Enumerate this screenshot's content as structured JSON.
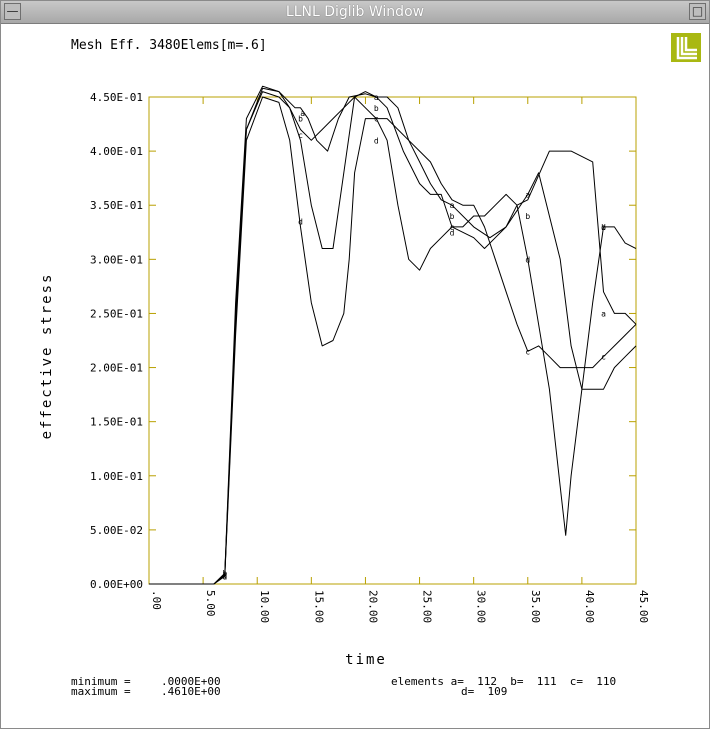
{
  "window": {
    "title": "LLNL Diglib Window",
    "menu_icon": "system-menu-icon",
    "maximize_icon": "maximize-icon"
  },
  "logo": {
    "name": "llnl-logo-icon",
    "color": "#a9b812"
  },
  "chart_data": {
    "type": "line",
    "title": "Mesh Eff. 3480Elems[m=.6]",
    "xlabel": "time",
    "ylabel": "effective stress",
    "xlim": [
      0,
      45
    ],
    "ylim": [
      0,
      0.45
    ],
    "x_ticks": [
      ".00",
      "5.00",
      "10.00",
      "15.00",
      "20.00",
      "25.00",
      "30.00",
      "35.00",
      "40.00",
      "45.00"
    ],
    "y_ticks": [
      "0.00E+00",
      "5.00E-02",
      "1.00E-01",
      "1.50E-01",
      "2.00E-01",
      "2.50E-01",
      "3.00E-01",
      "3.50E-01",
      "4.00E-01",
      "4.50E-01"
    ],
    "grid": false,
    "frame_color": "#b8a000",
    "series": [
      {
        "name": "a",
        "values": [
          [
            0,
            0
          ],
          [
            6,
            0
          ],
          [
            7,
            0.008
          ],
          [
            8,
            0.25
          ],
          [
            9,
            0.42
          ],
          [
            10.5,
            0.458
          ],
          [
            12,
            0.455
          ],
          [
            13.5,
            0.44
          ],
          [
            14,
            0.44
          ],
          [
            14.7,
            0.43
          ],
          [
            15.5,
            0.41
          ],
          [
            16.5,
            0.4
          ],
          [
            17.5,
            0.43
          ],
          [
            18.5,
            0.45
          ],
          [
            20,
            0.453
          ],
          [
            21,
            0.45
          ],
          [
            22,
            0.45
          ],
          [
            23,
            0.44
          ],
          [
            24,
            0.41
          ],
          [
            25,
            0.39
          ],
          [
            26,
            0.37
          ],
          [
            27,
            0.355
          ],
          [
            28,
            0.35
          ],
          [
            30,
            0.33
          ],
          [
            31.5,
            0.32
          ],
          [
            33,
            0.33
          ],
          [
            35,
            0.36
          ],
          [
            36,
            0.38
          ],
          [
            38,
            0.3
          ],
          [
            39,
            0.22
          ],
          [
            40,
            0.18
          ],
          [
            41,
            0.18
          ],
          [
            42,
            0.18
          ],
          [
            43,
            0.2
          ],
          [
            44,
            0.21
          ],
          [
            45,
            0.22
          ]
        ]
      },
      {
        "name": "b",
        "values": [
          [
            0,
            0
          ],
          [
            6,
            0
          ],
          [
            7,
            0.01
          ],
          [
            8,
            0.26
          ],
          [
            9,
            0.43
          ],
          [
            10.5,
            0.46
          ],
          [
            12,
            0.455
          ],
          [
            13,
            0.44
          ],
          [
            14,
            0.41
          ],
          [
            15,
            0.35
          ],
          [
            16,
            0.31
          ],
          [
            17,
            0.31
          ],
          [
            18,
            0.38
          ],
          [
            19,
            0.45
          ],
          [
            20,
            0.455
          ],
          [
            21,
            0.45
          ],
          [
            22,
            0.44
          ],
          [
            23.5,
            0.4
          ],
          [
            25,
            0.37
          ],
          [
            26,
            0.36
          ],
          [
            27,
            0.36
          ],
          [
            28,
            0.33
          ],
          [
            30,
            0.32
          ],
          [
            31,
            0.31
          ],
          [
            32,
            0.32
          ],
          [
            33,
            0.33
          ],
          [
            34,
            0.35
          ],
          [
            35,
            0.355
          ],
          [
            37,
            0.4
          ],
          [
            39,
            0.4
          ],
          [
            41,
            0.39
          ],
          [
            42,
            0.27
          ],
          [
            43,
            0.25
          ],
          [
            44,
            0.25
          ],
          [
            45,
            0.24
          ]
        ]
      },
      {
        "name": "c",
        "values": [
          [
            0,
            0
          ],
          [
            6,
            0
          ],
          [
            7,
            0.009
          ],
          [
            8,
            0.24
          ],
          [
            9,
            0.42
          ],
          [
            10.5,
            0.455
          ],
          [
            12,
            0.45
          ],
          [
            13,
            0.44
          ],
          [
            14,
            0.42
          ],
          [
            15,
            0.41
          ],
          [
            16,
            0.42
          ],
          [
            17,
            0.43
          ],
          [
            18,
            0.44
          ],
          [
            19,
            0.45
          ],
          [
            20,
            0.44
          ],
          [
            21,
            0.43
          ],
          [
            22,
            0.43
          ],
          [
            23,
            0.42
          ],
          [
            24,
            0.41
          ],
          [
            25,
            0.4
          ],
          [
            26,
            0.39
          ],
          [
            27,
            0.37
          ],
          [
            28,
            0.355
          ],
          [
            29,
            0.35
          ],
          [
            30,
            0.35
          ],
          [
            31,
            0.33
          ],
          [
            32,
            0.3
          ],
          [
            33,
            0.27
          ],
          [
            34,
            0.24
          ],
          [
            35,
            0.215
          ],
          [
            36,
            0.22
          ],
          [
            37,
            0.21
          ],
          [
            38,
            0.2
          ],
          [
            39,
            0.2
          ],
          [
            40,
            0.2
          ],
          [
            41,
            0.2
          ],
          [
            42,
            0.21
          ],
          [
            43,
            0.22
          ],
          [
            44,
            0.23
          ],
          [
            45,
            0.24
          ]
        ]
      },
      {
        "name": "d",
        "values": [
          [
            0,
            0
          ],
          [
            6,
            0
          ],
          [
            7,
            0.007
          ],
          [
            8,
            0.23
          ],
          [
            9,
            0.41
          ],
          [
            10.5,
            0.45
          ],
          [
            12,
            0.445
          ],
          [
            13,
            0.41
          ],
          [
            14,
            0.33
          ],
          [
            15,
            0.26
          ],
          [
            16,
            0.22
          ],
          [
            17,
            0.225
          ],
          [
            18,
            0.25
          ],
          [
            18.5,
            0.3
          ],
          [
            19,
            0.38
          ],
          [
            20,
            0.43
          ],
          [
            21,
            0.43
          ],
          [
            22,
            0.41
          ],
          [
            23,
            0.35
          ],
          [
            24,
            0.3
          ],
          [
            25,
            0.29
          ],
          [
            26,
            0.31
          ],
          [
            27,
            0.32
          ],
          [
            28,
            0.33
          ],
          [
            29,
            0.33
          ],
          [
            30,
            0.34
          ],
          [
            31,
            0.34
          ],
          [
            32,
            0.35
          ],
          [
            33,
            0.36
          ],
          [
            34,
            0.35
          ],
          [
            35,
            0.3
          ],
          [
            36,
            0.24
          ],
          [
            37,
            0.18
          ],
          [
            38,
            0.09
          ],
          [
            38.5,
            0.045
          ],
          [
            39,
            0.1
          ],
          [
            40,
            0.18
          ],
          [
            41,
            0.26
          ],
          [
            42,
            0.33
          ],
          [
            43,
            0.33
          ],
          [
            44,
            0.315
          ],
          [
            45,
            0.31
          ]
        ]
      }
    ],
    "markers": [
      {
        "series": "a",
        "x": 7,
        "y": 0.008
      },
      {
        "series": "a",
        "x": 14.2,
        "y": 0.435
      },
      {
        "series": "a",
        "x": 21,
        "y": 0.45
      },
      {
        "series": "a",
        "x": 28,
        "y": 0.35
      },
      {
        "series": "a",
        "x": 35,
        "y": 0.36
      },
      {
        "series": "a",
        "x": 42,
        "y": 0.25
      },
      {
        "series": "b",
        "x": 7,
        "y": 0.01
      },
      {
        "series": "b",
        "x": 14,
        "y": 0.43
      },
      {
        "series": "b",
        "x": 21,
        "y": 0.44
      },
      {
        "series": "b",
        "x": 28,
        "y": 0.34
      },
      {
        "series": "b",
        "x": 35,
        "y": 0.34
      },
      {
        "series": "b",
        "x": 42,
        "y": 0.33
      },
      {
        "series": "c",
        "x": 7,
        "y": 0.009
      },
      {
        "series": "c",
        "x": 14,
        "y": 0.415
      },
      {
        "series": "c",
        "x": 21,
        "y": 0.43
      },
      {
        "series": "c",
        "x": 28,
        "y": 0.33
      },
      {
        "series": "c",
        "x": 35,
        "y": 0.215
      },
      {
        "series": "c",
        "x": 42,
        "y": 0.21
      },
      {
        "series": "d",
        "x": 7,
        "y": 0.007
      },
      {
        "series": "d",
        "x": 14,
        "y": 0.335
      },
      {
        "series": "d",
        "x": 21,
        "y": 0.41
      },
      {
        "series": "d",
        "x": 28,
        "y": 0.325
      },
      {
        "series": "d",
        "x": 35,
        "y": 0.3
      },
      {
        "series": "d",
        "x": 42,
        "y": 0.33
      }
    ],
    "footer": {
      "minimum_label": "minimum =",
      "minimum_value": ".0000E+00",
      "maximum_label": "maximum =",
      "maximum_value": ".4610E+00",
      "elements_line1": "elements a=  112  b=  111  c=  110",
      "elements_line2": "d=  109"
    }
  }
}
